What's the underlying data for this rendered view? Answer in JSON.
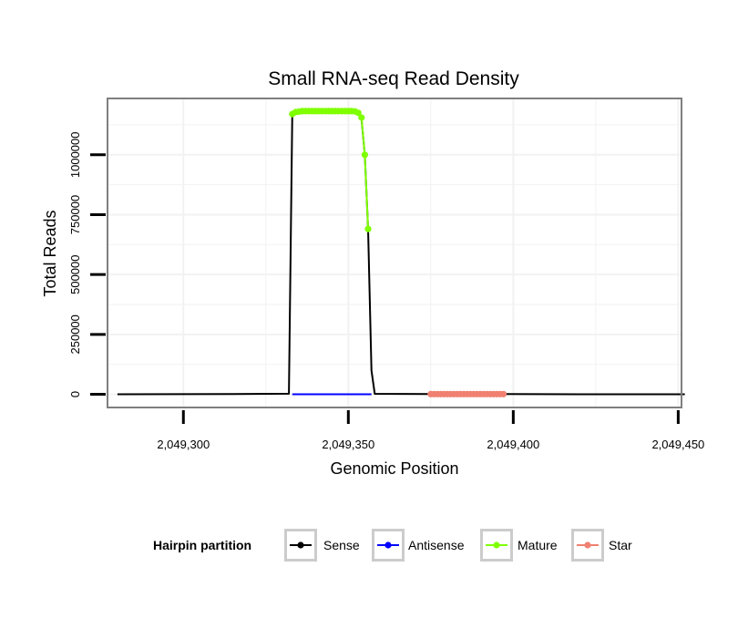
{
  "chart_data": {
    "type": "line",
    "title": "Small RNA-seq Read Density",
    "xlabel": "Genomic Position",
    "ylabel": "Total Reads",
    "xlim": [
      2049277,
      2049451
    ],
    "ylim": [
      -55000,
      1235000
    ],
    "grid": true,
    "x_ticks": [
      2049300,
      2049350,
      2049400,
      2049450
    ],
    "x_tick_labels": [
      "2,049,300",
      "2,049,350",
      "2,049,400",
      "2,049,450"
    ],
    "y_ticks": [
      0,
      250000,
      500000,
      750000,
      1000000
    ],
    "y_tick_labels": [
      "0",
      "250000",
      "500000",
      "750000",
      "1000000"
    ],
    "legend": {
      "title": "Hairpin partition",
      "position": "bottom",
      "entries": [
        {
          "label": "Sense",
          "color": "#000000"
        },
        {
          "label": "Antisense",
          "color": "#0000ff"
        },
        {
          "label": "Mature",
          "color": "#7fff00"
        },
        {
          "label": "Star",
          "color": "#f08070"
        }
      ]
    },
    "series": [
      {
        "name": "Sense",
        "color": "#000000",
        "markers": false,
        "x": [
          2049280,
          2049315,
          2049332,
          2049333,
          2049334,
          2049336,
          2049340,
          2049345,
          2049350,
          2049352,
          2049353,
          2049354,
          2049355,
          2049356,
          2049357,
          2049358,
          2049375,
          2049397,
          2049420,
          2049452
        ],
        "y": [
          0,
          1500,
          2500,
          1170000,
          1180000,
          1182000,
          1182000,
          1182000,
          1182000,
          1181000,
          1175000,
          1150000,
          1000000,
          690000,
          100000,
          2000,
          1000,
          1000,
          0,
          0
        ]
      },
      {
        "name": "Antisense",
        "color": "#0000ff",
        "markers": false,
        "x": [
          2049333,
          2049357
        ],
        "y": [
          0,
          0
        ]
      },
      {
        "name": "Mature",
        "color": "#7fff00",
        "markers": true,
        "x": [
          2049333,
          2049334,
          2049335,
          2049336,
          2049337,
          2049338,
          2049339,
          2049340,
          2049341,
          2049342,
          2049343,
          2049344,
          2049345,
          2049346,
          2049347,
          2049348,
          2049349,
          2049350,
          2049351,
          2049352,
          2049353,
          2049354,
          2049355,
          2049356
        ],
        "y": [
          1170000,
          1178000,
          1180000,
          1182000,
          1182000,
          1182000,
          1182000,
          1182000,
          1182000,
          1182000,
          1182000,
          1182000,
          1182000,
          1182000,
          1182000,
          1182000,
          1182000,
          1182000,
          1182000,
          1181000,
          1175000,
          1155000,
          1000000,
          690000
        ]
      },
      {
        "name": "Star",
        "color": "#f08070",
        "markers": true,
        "x": [
          2049375,
          2049376,
          2049377,
          2049378,
          2049379,
          2049380,
          2049381,
          2049382,
          2049383,
          2049384,
          2049385,
          2049386,
          2049387,
          2049388,
          2049389,
          2049390,
          2049391,
          2049392,
          2049393,
          2049394,
          2049395,
          2049396,
          2049397
        ],
        "y": [
          1000,
          1000,
          1000,
          1000,
          1000,
          1000,
          1000,
          1000,
          1000,
          1000,
          1000,
          1000,
          1000,
          1000,
          1000,
          1000,
          1000,
          1000,
          1000,
          1000,
          1000,
          1000,
          1000
        ]
      }
    ]
  }
}
